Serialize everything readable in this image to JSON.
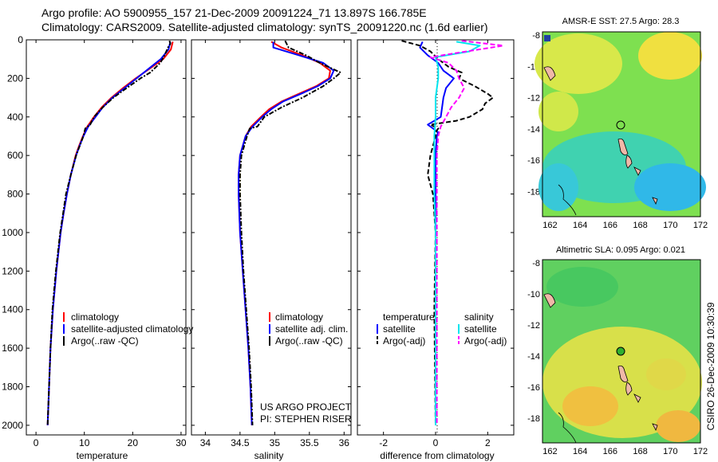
{
  "header": {
    "line1": "Argo profile: AO 5900955_157 21-Dec-2009 20091224_71 13.897S 166.785E",
    "line2": "Climatology: CARS2009. Satellite-adjusted climatology: synTS_20091220.nc (1.6d earlier)"
  },
  "colors": {
    "climatology": "#ff0000",
    "satellite": "#0000ff",
    "argo": "#000000",
    "sst_satellite": "#00e5ee",
    "sst_argo": "#ff00ff"
  },
  "chart_data": [
    {
      "type": "line",
      "name": "temperature-profile",
      "xlabel": "temperature",
      "xlim": [
        -2,
        31
      ],
      "ylim": [
        2050,
        0
      ],
      "xticks": [
        0,
        10,
        20,
        30
      ],
      "yticks": [
        0,
        200,
        400,
        600,
        800,
        1000,
        1200,
        1400,
        1600,
        1800,
        2000
      ],
      "legend": [
        "climatology",
        "satellite-adjusted climatology",
        "Argo(..raw -QC)"
      ],
      "series": [
        {
          "name": "climatology",
          "color": "#ff0000",
          "depth": [
            10,
            50,
            100,
            150,
            200,
            250,
            300,
            350,
            400,
            450,
            500,
            550,
            600,
            700,
            800,
            900,
            1000,
            1200,
            1400,
            1600,
            1800,
            2000
          ],
          "values": [
            28.3,
            27.9,
            26.3,
            23.5,
            20.6,
            18.0,
            15.6,
            13.6,
            12.0,
            10.6,
            9.7,
            8.9,
            8.2,
            7.2,
            6.4,
            5.7,
            5.1,
            4.2,
            3.5,
            3.0,
            2.7,
            2.4
          ]
        },
        {
          "name": "satellite",
          "color": "#0000ff",
          "depth": [
            10,
            50,
            100,
            150,
            200,
            250,
            300,
            350,
            400,
            450,
            500,
            550,
            600,
            700,
            800,
            900,
            1000,
            1200,
            1400,
            1600,
            1800,
            2000
          ],
          "values": [
            27.8,
            27.4,
            25.8,
            23.3,
            20.8,
            18.3,
            15.8,
            13.8,
            12.3,
            10.8,
            9.8,
            9.0,
            8.3,
            7.2,
            6.4,
            5.7,
            5.1,
            4.2,
            3.5,
            3.0,
            2.7,
            2.4
          ]
        },
        {
          "name": "argo",
          "color": "#000000",
          "depth": [
            5,
            20,
            40,
            80,
            120,
            170,
            200,
            260,
            300,
            350,
            400,
            440,
            460,
            500,
            600,
            700,
            800,
            900,
            1000,
            1200,
            1400,
            1600,
            1800,
            2000
          ],
          "values": [
            27.6,
            27.8,
            27.3,
            26.6,
            25.7,
            23.6,
            21.6,
            18.2,
            16.0,
            13.8,
            12.0,
            11.2,
            10.2,
            9.8,
            8.3,
            7.2,
            6.2,
            5.6,
            5.0,
            4.1,
            3.4,
            3.0,
            2.7,
            2.4
          ]
        }
      ]
    },
    {
      "type": "line",
      "name": "salinity-profile",
      "xlabel": "salinity",
      "xlim": [
        33.8,
        36.1
      ],
      "ylim": [
        2050,
        0
      ],
      "xticks": [
        34,
        34.5,
        35,
        35.5,
        36
      ],
      "legend": [
        "climatology",
        "satellite adj. clim.",
        "Argo(..raw -QC)"
      ],
      "annotation": [
        "US ARGO PROJECT",
        "PI: STEPHEN RISER"
      ],
      "series": [
        {
          "name": "climatology",
          "color": "#ff0000",
          "depth": [
            10,
            40,
            80,
            120,
            160,
            200,
            240,
            280,
            320,
            360,
            400,
            450,
            500,
            600,
            700,
            800,
            1000,
            1200,
            1400,
            1600,
            1800,
            2000
          ],
          "values": [
            34.95,
            35.1,
            35.4,
            35.65,
            35.8,
            35.78,
            35.6,
            35.35,
            35.1,
            34.92,
            34.8,
            34.66,
            34.58,
            34.5,
            34.48,
            34.48,
            34.5,
            34.54,
            34.58,
            34.62,
            34.65,
            34.67
          ]
        },
        {
          "name": "satellite",
          "color": "#0000ff",
          "depth": [
            10,
            40,
            80,
            120,
            160,
            200,
            240,
            280,
            320,
            360,
            400,
            450,
            500,
            600,
            700,
            800,
            1000,
            1200,
            1400,
            1600,
            1800,
            2000
          ],
          "values": [
            34.98,
            34.98,
            35.35,
            35.7,
            35.85,
            35.8,
            35.62,
            35.38,
            35.12,
            34.95,
            34.82,
            34.68,
            34.58,
            34.5,
            34.48,
            34.48,
            34.5,
            34.54,
            34.58,
            34.62,
            34.65,
            34.67
          ]
        },
        {
          "name": "argo",
          "color": "#000000",
          "depth": [
            5,
            40,
            80,
            120,
            170,
            200,
            240,
            300,
            350,
            400,
            450,
            460,
            500,
            600,
            700,
            800,
            1000,
            1200,
            1400,
            1600,
            1800,
            2000
          ],
          "values": [
            35.15,
            35.2,
            35.45,
            35.65,
            35.95,
            35.85,
            35.7,
            35.4,
            35.1,
            34.85,
            34.75,
            34.64,
            34.6,
            34.52,
            34.5,
            34.5,
            34.52,
            34.55,
            34.59,
            34.63,
            34.66,
            34.68
          ]
        }
      ]
    },
    {
      "type": "line",
      "name": "difference-profile",
      "xlabel": "difference from climatology",
      "xlim": [
        -3.0,
        3.0
      ],
      "ylim": [
        2050,
        0
      ],
      "xticks": [
        -2,
        0,
        2
      ],
      "legend_temperature": [
        "temperature",
        "satellite",
        "Argo(-adj)"
      ],
      "legend_salinity": [
        "salinity",
        "satellite",
        "Argo(-adj)"
      ],
      "series": [
        {
          "name": "temperature satellite",
          "color": "#0000ff",
          "style": "solid",
          "depth": [
            10,
            40,
            80,
            120,
            160,
            200,
            250,
            300,
            400,
            440,
            480,
            500,
            600,
            800,
            1000,
            1400,
            2000
          ],
          "values": [
            -0.5,
            -0.6,
            -0.3,
            0.1,
            0.3,
            0.7,
            0.4,
            0.3,
            0.2,
            -0.3,
            0.1,
            0.05,
            0.0,
            0.0,
            0.0,
            0.0,
            0.0
          ]
        },
        {
          "name": "temperature argo",
          "color": "#000000",
          "style": "dashed",
          "depth": [
            5,
            30,
            60,
            100,
            140,
            170,
            200,
            240,
            280,
            300,
            330,
            360,
            400,
            420,
            440,
            460,
            480,
            500,
            600,
            700,
            800,
            1000,
            1400,
            2000
          ],
          "values": [
            -1.3,
            -0.6,
            -0.2,
            0.1,
            0.5,
            1.0,
            0.9,
            1.5,
            2.0,
            2.2,
            1.9,
            1.8,
            1.3,
            0.8,
            -0.2,
            0.1,
            0.0,
            0.0,
            -0.2,
            -0.3,
            -0.1,
            0.0,
            -0.05,
            0.0
          ]
        },
        {
          "name": "salinity satellite",
          "color": "#00e5ee",
          "style": "solid",
          "depth": [
            10,
            30,
            60,
            90,
            140,
            200,
            300,
            400,
            500,
            600,
            800,
            1000,
            1400,
            2000
          ],
          "values": [
            0.8,
            1.7,
            1.3,
            0.0,
            0.1,
            0.1,
            0.0,
            0.0,
            -0.05,
            -0.05,
            -0.05,
            0.0,
            0.0,
            0.0
          ]
        },
        {
          "name": "salinity argo",
          "color": "#ff00ff",
          "style": "dashed",
          "depth": [
            5,
            30,
            60,
            90,
            120,
            160,
            200,
            250,
            300,
            350,
            400,
            450,
            500,
            600,
            800,
            1000,
            1400,
            2000
          ],
          "values": [
            1.0,
            2.6,
            1.2,
            -0.2,
            0.5,
            0.8,
            0.9,
            1.1,
            0.9,
            0.6,
            0.4,
            0.2,
            0.1,
            0.05,
            0.05,
            0.05,
            0.05,
            0.05
          ]
        }
      ]
    },
    {
      "type": "heatmap",
      "name": "sst-map",
      "title": "AMSR-E SST: 27.5 Argo: 28.3",
      "xlim": [
        161.5,
        172
      ],
      "ylim": [
        -19.6,
        -7.8
      ],
      "xticks": [
        162,
        164,
        166,
        168,
        170,
        172
      ],
      "yticks": [
        -8,
        -10,
        -12,
        -14,
        -16,
        -18
      ],
      "float_position": [
        166.785,
        -13.897
      ]
    },
    {
      "type": "heatmap",
      "name": "sla-map",
      "title": "Altimetric SLA: 0.095 Argo: 0.021",
      "xlim": [
        161.5,
        172
      ],
      "ylim": [
        -19.6,
        -7.8
      ],
      "xticks": [
        162,
        164,
        166,
        168,
        170,
        172
      ],
      "yticks": [
        -8,
        -10,
        -12,
        -14,
        -16,
        -18
      ],
      "float_position": [
        166.785,
        -13.897
      ]
    }
  ],
  "footer": {
    "stamp": "CSIRO 26-Dec-2009 10:30:39"
  }
}
